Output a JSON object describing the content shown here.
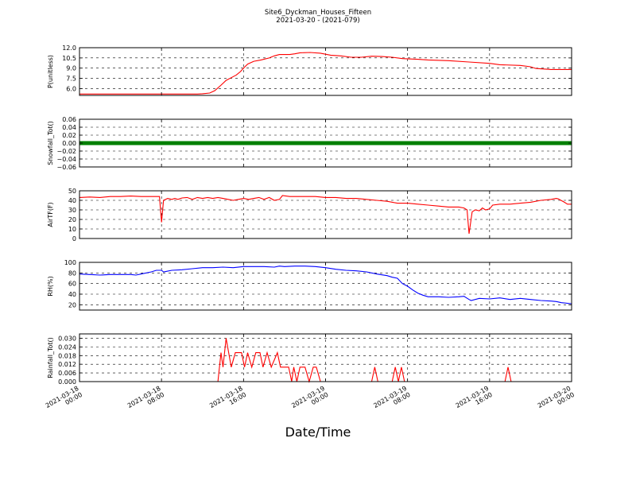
{
  "figure": {
    "title": "Site6_Dyckman_Houses_Fifteen",
    "subtitle": "2021-03-20 - (2021-079)",
    "xlabel": "Date/Time"
  },
  "chart_data": {
    "type": "line",
    "x_ticks": [
      "2021-03-18\n00:00",
      "2021-03-18\n08:00",
      "2021-03-18\n16:00",
      "2021-03-19\n00:00",
      "2021-03-19\n08:00",
      "2021-03-19\n16:00",
      "2021-03-20\n00:00"
    ],
    "x_range_hours": [
      0,
      48
    ],
    "panels": [
      {
        "ylabel": "P(unitless)",
        "ylim": [
          5.0,
          12.0
        ],
        "yticks": [
          "6.0",
          "7.5",
          "9.0",
          "10.5",
          "12.0"
        ],
        "ytick_values": [
          6.0,
          7.5,
          9.0,
          10.5,
          12.0
        ],
        "color": "#ff0000",
        "style": "line",
        "grid": true,
        "points": [
          [
            0,
            5.2
          ],
          [
            6,
            5.2
          ],
          [
            10,
            5.2
          ],
          [
            11.5,
            5.2
          ],
          [
            12,
            5.25
          ],
          [
            12.7,
            5.35
          ],
          [
            13.2,
            5.7
          ],
          [
            13.8,
            6.5
          ],
          [
            14.3,
            7.2
          ],
          [
            14.8,
            7.6
          ],
          [
            15.3,
            8.0
          ],
          [
            15.7,
            8.5
          ],
          [
            16,
            9.0
          ],
          [
            16.4,
            9.6
          ],
          [
            17,
            10.0
          ],
          [
            17.7,
            10.2
          ],
          [
            18.5,
            10.5
          ],
          [
            19,
            10.8
          ],
          [
            19.5,
            11.0
          ],
          [
            20.5,
            11.0
          ],
          [
            21,
            11.1
          ],
          [
            21.5,
            11.25
          ],
          [
            22.5,
            11.3
          ],
          [
            23.5,
            11.2
          ],
          [
            24.5,
            10.9
          ],
          [
            25.5,
            10.8
          ],
          [
            26.5,
            10.6
          ],
          [
            27.5,
            10.6
          ],
          [
            28.5,
            10.75
          ],
          [
            29.5,
            10.7
          ],
          [
            30.5,
            10.6
          ],
          [
            31.5,
            10.4
          ],
          [
            33,
            10.3
          ],
          [
            34,
            10.2
          ],
          [
            36,
            10.1
          ],
          [
            38,
            9.9
          ],
          [
            40,
            9.7
          ],
          [
            41,
            9.5
          ],
          [
            43,
            9.4
          ],
          [
            44,
            9.2
          ],
          [
            44.5,
            8.95
          ],
          [
            45,
            8.9
          ],
          [
            46,
            8.8
          ],
          [
            48,
            8.8
          ]
        ]
      },
      {
        "ylabel": "Snowfall_Tot()",
        "ylim": [
          -0.06,
          0.06
        ],
        "yticks": [
          "−0.06",
          "−0.04",
          "−0.02",
          "0.00",
          "0.02",
          "0.04",
          "0.06"
        ],
        "ytick_values": [
          -0.06,
          -0.04,
          -0.02,
          0.0,
          0.02,
          0.04,
          0.06
        ],
        "color": "#008000",
        "style": "markers",
        "grid": true,
        "points": [
          [
            0,
            0
          ],
          [
            48,
            0
          ]
        ]
      },
      {
        "ylabel": "AirTF(F)",
        "ylim": [
          0,
          50
        ],
        "yticks": [
          "0",
          "10",
          "20",
          "30",
          "40",
          "50"
        ],
        "ytick_values": [
          0,
          10,
          20,
          30,
          40,
          50
        ],
        "color": "#ff0000",
        "style": "line",
        "grid": true,
        "points": [
          [
            0,
            43
          ],
          [
            1,
            43.5
          ],
          [
            2,
            43
          ],
          [
            3,
            44
          ],
          [
            4,
            44
          ],
          [
            5,
            44.5
          ],
          [
            6,
            44
          ],
          [
            7,
            44
          ],
          [
            7.8,
            44
          ],
          [
            7.9,
            30
          ],
          [
            8,
            17
          ],
          [
            8.2,
            40
          ],
          [
            8.6,
            42
          ],
          [
            9,
            41
          ],
          [
            9.3,
            42
          ],
          [
            9.6,
            41
          ],
          [
            10,
            42.5
          ],
          [
            10.5,
            43
          ],
          [
            11,
            41
          ],
          [
            11.5,
            43
          ],
          [
            12,
            42
          ],
          [
            12.5,
            43
          ],
          [
            13,
            42
          ],
          [
            13.5,
            43
          ],
          [
            14,
            42
          ],
          [
            14.5,
            41
          ],
          [
            15,
            40
          ],
          [
            15.5,
            41
          ],
          [
            16,
            42
          ],
          [
            16.5,
            41
          ],
          [
            17,
            42
          ],
          [
            17.5,
            43
          ],
          [
            18,
            41
          ],
          [
            18.5,
            43
          ],
          [
            19,
            40
          ],
          [
            19.5,
            41
          ],
          [
            19.8,
            45
          ],
          [
            20.5,
            44
          ],
          [
            21.5,
            44
          ],
          [
            23,
            44
          ],
          [
            24,
            43
          ],
          [
            25,
            43
          ],
          [
            26,
            42
          ],
          [
            27,
            42
          ],
          [
            28,
            41
          ],
          [
            29,
            40
          ],
          [
            30,
            39
          ],
          [
            31,
            37
          ],
          [
            32,
            37
          ],
          [
            33,
            36
          ],
          [
            34,
            35
          ],
          [
            35,
            34
          ],
          [
            36,
            33
          ],
          [
            37,
            33
          ],
          [
            37.5,
            32
          ],
          [
            37.8,
            30
          ],
          [
            38,
            5
          ],
          [
            38.3,
            28
          ],
          [
            38.6,
            30
          ],
          [
            39,
            29
          ],
          [
            39.3,
            32
          ],
          [
            39.6,
            30
          ],
          [
            40,
            31
          ],
          [
            40.3,
            35
          ],
          [
            41,
            36
          ],
          [
            42,
            36
          ],
          [
            43,
            37
          ],
          [
            44,
            38
          ],
          [
            45,
            40
          ],
          [
            46,
            41
          ],
          [
            46.5,
            42
          ],
          [
            46.7,
            41.5
          ],
          [
            47.3,
            38
          ],
          [
            47.6,
            36
          ],
          [
            48,
            36
          ]
        ]
      },
      {
        "ylabel": "RH(%)",
        "ylim": [
          10,
          100
        ],
        "yticks": [
          "20",
          "40",
          "60",
          "80",
          "100"
        ],
        "ytick_values": [
          20,
          40,
          60,
          80,
          100
        ],
        "color": "#0000ff",
        "style": "line",
        "grid": true,
        "points": [
          [
            0,
            78
          ],
          [
            1,
            77
          ],
          [
            2,
            76
          ],
          [
            3,
            77
          ],
          [
            4,
            77
          ],
          [
            5,
            77
          ],
          [
            5.5,
            76
          ],
          [
            6,
            78
          ],
          [
            7,
            82
          ],
          [
            7.5,
            85
          ],
          [
            8,
            85
          ],
          [
            8.2,
            82
          ],
          [
            8.5,
            83
          ],
          [
            9,
            85
          ],
          [
            10,
            86
          ],
          [
            11,
            88
          ],
          [
            12,
            90
          ],
          [
            13,
            90
          ],
          [
            14,
            91
          ],
          [
            15,
            90
          ],
          [
            16,
            92
          ],
          [
            17,
            92
          ],
          [
            18,
            92
          ],
          [
            19,
            91
          ],
          [
            19.5,
            93
          ],
          [
            20,
            92
          ],
          [
            21,
            93
          ],
          [
            22,
            93
          ],
          [
            23,
            92
          ],
          [
            24,
            90
          ],
          [
            25,
            87
          ],
          [
            26,
            85
          ],
          [
            27,
            84
          ],
          [
            28,
            82
          ],
          [
            29,
            78
          ],
          [
            30,
            75
          ],
          [
            30.5,
            72
          ],
          [
            31,
            70
          ],
          [
            31.5,
            60
          ],
          [
            32,
            55
          ],
          [
            32.5,
            48
          ],
          [
            33,
            42
          ],
          [
            33.5,
            38
          ],
          [
            34,
            35
          ],
          [
            35,
            35
          ],
          [
            36,
            34
          ],
          [
            37,
            35
          ],
          [
            37.5,
            36
          ],
          [
            38,
            30
          ],
          [
            38.2,
            28
          ],
          [
            39,
            32
          ],
          [
            40,
            31
          ],
          [
            41,
            33
          ],
          [
            42,
            30
          ],
          [
            43,
            32
          ],
          [
            44,
            30
          ],
          [
            45,
            28
          ],
          [
            46,
            27
          ],
          [
            46.5,
            26
          ],
          [
            47,
            24
          ],
          [
            48,
            22
          ]
        ]
      },
      {
        "ylabel": "Rainfall_Tot()",
        "ylim": [
          0,
          0.033
        ],
        "yticks": [
          "0.000",
          "0.006",
          "0.012",
          "0.018",
          "0.024",
          "0.030"
        ],
        "ytick_values": [
          0.0,
          0.006,
          0.012,
          0.018,
          0.024,
          0.03
        ],
        "color": "#ff0000",
        "style": "line",
        "grid": true,
        "points": [
          [
            0,
            0
          ],
          [
            13.5,
            0
          ],
          [
            13.8,
            0.02
          ],
          [
            14,
            0.01
          ],
          [
            14.3,
            0.03
          ],
          [
            14.8,
            0.01
          ],
          [
            15.2,
            0.02
          ],
          [
            15.8,
            0.02
          ],
          [
            16.1,
            0.01
          ],
          [
            16.4,
            0.02
          ],
          [
            16.8,
            0.01
          ],
          [
            17.2,
            0.02
          ],
          [
            17.6,
            0.02
          ],
          [
            17.9,
            0.01
          ],
          [
            18.3,
            0.02
          ],
          [
            18.7,
            0.01
          ],
          [
            19.3,
            0.02
          ],
          [
            19.6,
            0.01
          ],
          [
            20,
            0.01
          ],
          [
            20.4,
            0.01
          ],
          [
            20.7,
            0.0
          ],
          [
            20.9,
            0.01
          ],
          [
            21.2,
            0.0
          ],
          [
            21.5,
            0.01
          ],
          [
            22,
            0.01
          ],
          [
            22.4,
            0.0
          ],
          [
            22.8,
            0.01
          ],
          [
            23.1,
            0.01
          ],
          [
            23.5,
            0.0
          ],
          [
            28.5,
            0.0
          ],
          [
            28.8,
            0.01
          ],
          [
            29.1,
            0.0
          ],
          [
            30.5,
            0.0
          ],
          [
            30.8,
            0.01
          ],
          [
            31.1,
            0.0
          ],
          [
            31.4,
            0.01
          ],
          [
            31.7,
            0.0
          ],
          [
            41.5,
            0.0
          ],
          [
            41.8,
            0.01
          ],
          [
            42.1,
            0.0
          ],
          [
            48,
            0.0
          ]
        ]
      }
    ]
  }
}
